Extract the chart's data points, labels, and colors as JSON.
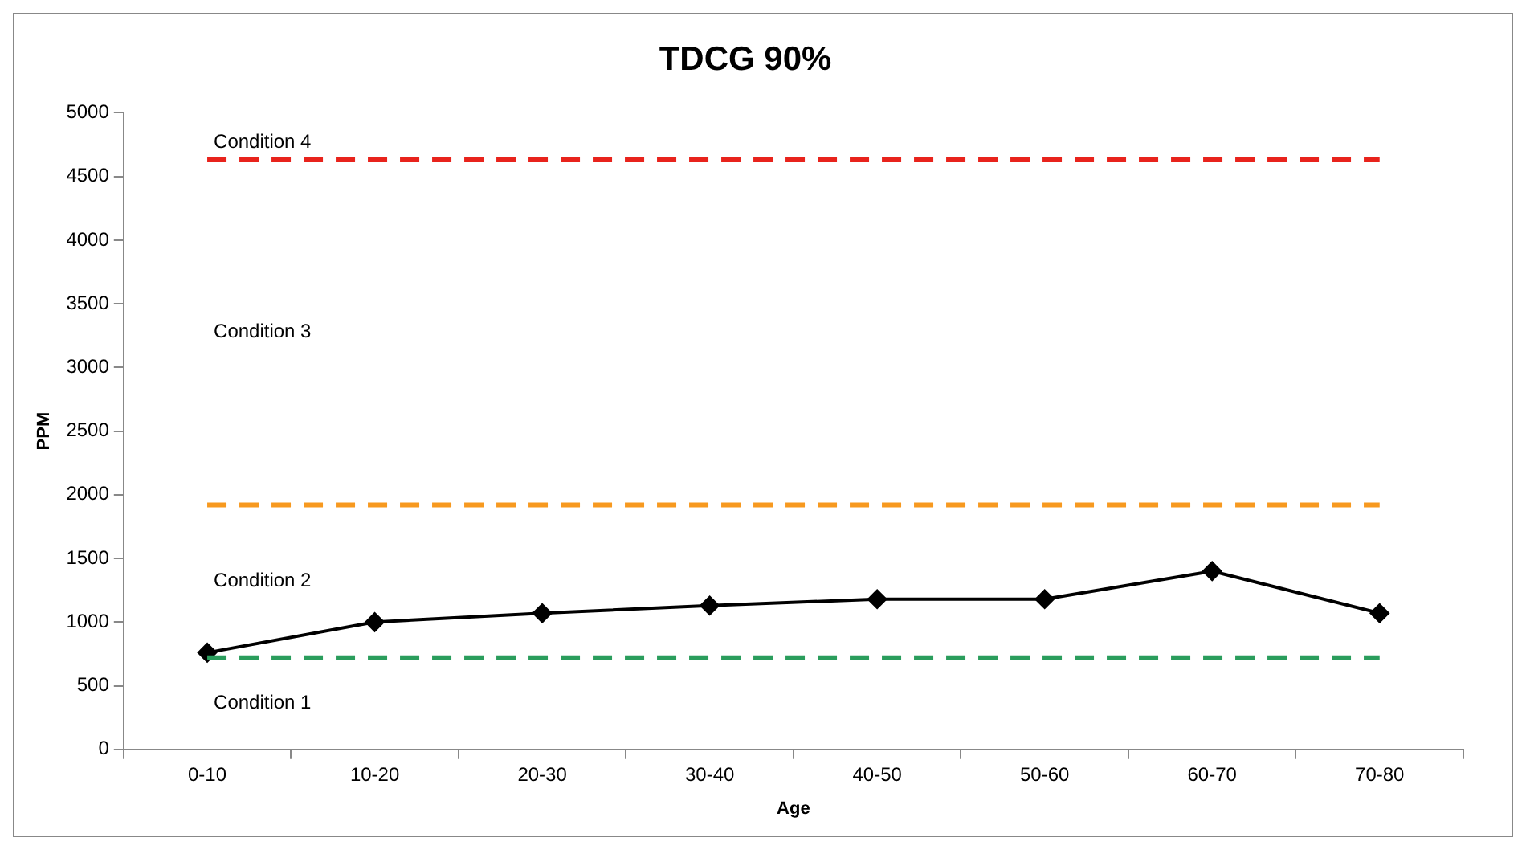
{
  "chart_data": {
    "type": "line",
    "title": "TDCG 90%",
    "xlabel": "Age",
    "ylabel": "PPM",
    "categories": [
      "0-10",
      "10-20",
      "20-30",
      "30-40",
      "40-50",
      "50-60",
      "60-70",
      "70-80"
    ],
    "series": [
      {
        "color": "#000000",
        "values": [
          760,
          1000,
          1070,
          1130,
          1180,
          1180,
          1400,
          1070
        ]
      }
    ],
    "marker": "diamond",
    "line_style": "solid",
    "ylim": [
      0,
      5000
    ],
    "yticks": [
      0,
      500,
      1000,
      1500,
      2000,
      2500,
      3000,
      3500,
      4000,
      4500,
      5000
    ],
    "ref_lines": [
      {
        "axis": "y",
        "value": 4630,
        "color": "#e8231c",
        "line_style": "dashed"
      },
      {
        "axis": "y",
        "value": 1920,
        "color": "#f7991f",
        "line_style": "dashed"
      },
      {
        "axis": "y",
        "value": 720,
        "color": "#2a9d5c",
        "line_style": "dashed"
      }
    ],
    "annotations": [
      "Condition 4",
      "Condition 3",
      "Condition 2",
      "Condition 1"
    ],
    "legend": false
  }
}
